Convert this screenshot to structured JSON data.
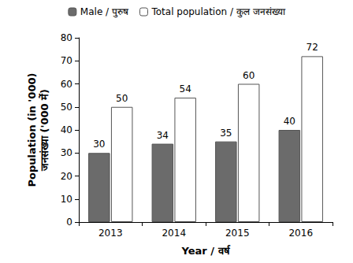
{
  "chart_data": {
    "type": "bar",
    "categories": [
      "2013",
      "2014",
      "2015",
      "2016"
    ],
    "series": [
      {
        "name": "Male / पुरुष",
        "color": "#6b6b6b",
        "values": [
          30,
          34,
          35,
          40
        ]
      },
      {
        "name": "Total population / कुल जनसंख्या",
        "color": "#ffffff",
        "values": [
          50,
          54,
          60,
          72
        ]
      }
    ],
    "xlabel": "Year / वर्ष",
    "ylabel": "Population (in '000)\nजनसंख्या ('000 में)",
    "ylim": [
      0,
      80
    ],
    "yticks": [
      0,
      10,
      20,
      30,
      40,
      50,
      60,
      70,
      80
    ],
    "grid": false,
    "legend": "top",
    "data_labels": true
  }
}
